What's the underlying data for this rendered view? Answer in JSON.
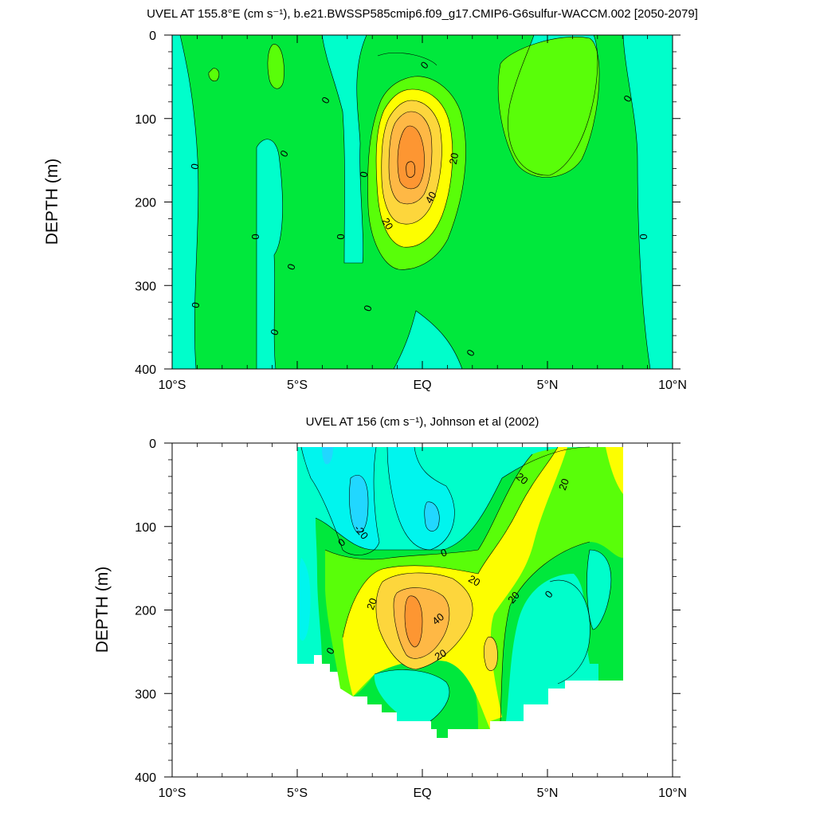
{
  "chart_data": [
    {
      "type": "contour",
      "title": "UVEL AT 155.8°E (cm s⁻¹), b.e21.BWSSP585cmip6.f09_g17.CMIP6-G6sulfur-WACCM.002 [2050-2079]",
      "xlabel": "",
      "ylabel": "DEPTH (m)",
      "x_ticks": [
        "10°S",
        "5°S",
        "EQ",
        "5°N",
        "10°N"
      ],
      "x_tick_values": [
        -10,
        -5,
        0,
        5,
        10
      ],
      "y_ticks": [
        "0",
        "100",
        "200",
        "300",
        "400"
      ],
      "y_tick_values": [
        0,
        100,
        200,
        300,
        400
      ],
      "xlim": [
        -10,
        10
      ],
      "ylim": [
        0,
        400
      ],
      "y_reversed": true,
      "contour_interval": 10,
      "contour_labels": [
        "0",
        "0",
        "0",
        "0",
        "0",
        "0",
        "0",
        "0",
        "0",
        "0",
        "0",
        "0",
        "0",
        "0",
        "20",
        "20",
        "40"
      ],
      "core": {
        "lat": -0.5,
        "depth": 160,
        "max_value": 50
      }
    },
    {
      "type": "contour",
      "title": "UVEL AT 156 (cm s⁻¹), Johnson et al (2002)",
      "xlabel": "",
      "ylabel": "DEPTH (m)",
      "x_ticks": [
        "10°S",
        "5°S",
        "EQ",
        "5°N",
        "10°N"
      ],
      "x_tick_values": [
        -10,
        -5,
        0,
        5,
        10
      ],
      "y_ticks": [
        "0",
        "100",
        "200",
        "300",
        "400"
      ],
      "y_tick_values": [
        0,
        100,
        200,
        300,
        400
      ],
      "xlim": [
        -10,
        10
      ],
      "ylim": [
        0,
        400
      ],
      "y_reversed": true,
      "data_extent_lat": [
        -5,
        8
      ],
      "contour_interval": 10,
      "contour_labels": [
        "-20",
        "0",
        "0",
        "0",
        "0",
        "20",
        "20",
        "20",
        "20",
        "20",
        "20",
        "40"
      ],
      "core": {
        "lat": -0.5,
        "depth": 200,
        "max_value": 50
      }
    }
  ],
  "colors": {
    "lt_neg20": "#21d7ff",
    "neg20_neg10": "#00f5ee",
    "neg10_0": "#00fecb",
    "0_10": "#00e83c",
    "10_20": "#59fe09",
    "20_30": "#fdfe00",
    "30_40": "#fdd63c",
    "40_50": "#feb845",
    "gt_50": "#fd9632"
  }
}
